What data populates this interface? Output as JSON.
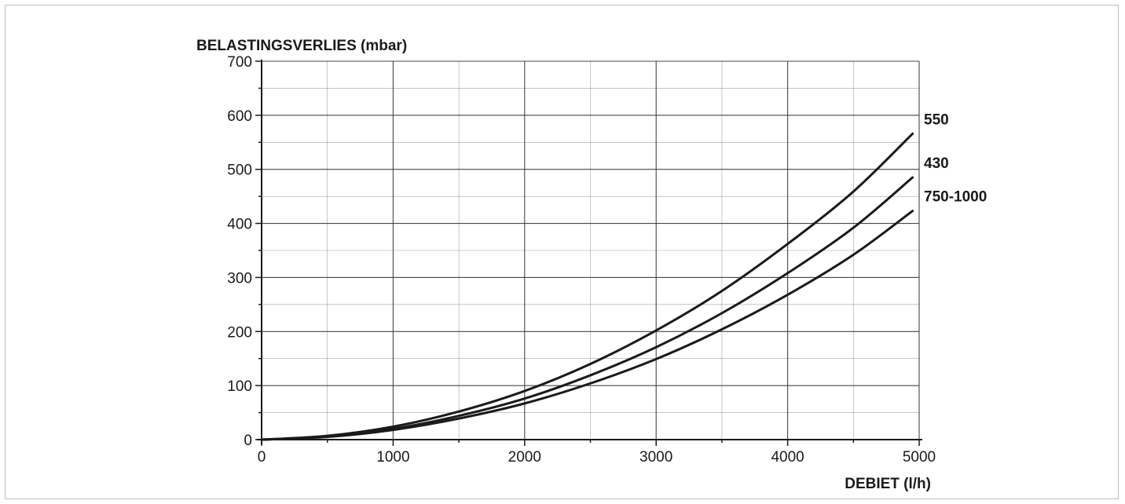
{
  "chart_data": {
    "type": "line",
    "ylabel": "BELASTINGSVERLIES (mbar)",
    "xlabel": "DEBIET (l/h)",
    "xlim": [
      0,
      5000
    ],
    "ylim": [
      0,
      700
    ],
    "x_ticks": [
      "0",
      "1000",
      "2000",
      "3000",
      "4000",
      "5000"
    ],
    "y_ticks": [
      "0",
      "100",
      "200",
      "300",
      "400",
      "500",
      "600",
      "700"
    ],
    "grid": true,
    "x": [
      0,
      500,
      1000,
      1500,
      2000,
      2500,
      3000,
      3500,
      4000,
      4500,
      4950
    ],
    "series": [
      {
        "name": "550",
        "values": [
          0,
          7,
          24,
          52,
          90,
          140,
          202,
          275,
          362,
          459,
          566
        ]
      },
      {
        "name": "430",
        "values": [
          0,
          6,
          20,
          44,
          76,
          119,
          171,
          234,
          308,
          392,
          485
        ]
      },
      {
        "name": "750-1000",
        "values": [
          0,
          5,
          18,
          39,
          67,
          104,
          149,
          204,
          268,
          342,
          423
        ]
      }
    ],
    "line_color": "#1a1a1a",
    "grid_color": "#333333"
  }
}
